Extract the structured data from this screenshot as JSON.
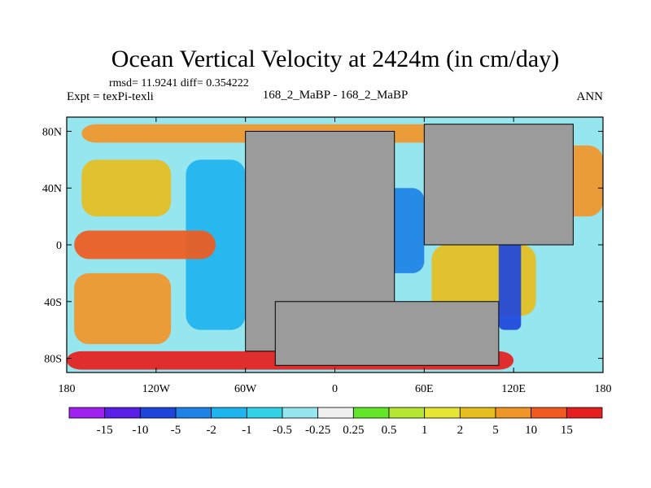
{
  "chart_data": {
    "type": "heatmap",
    "title": "Ocean Vertical Velocity at 2424m (in cm/day)",
    "stats": "rmsd= 11.9241 diff= 0.354222",
    "left_label": "Expt = texPi-texli",
    "center_label": "168_2_MaBP - 168_2_MaBP",
    "right_label": "ANN",
    "x_ticks": [
      "180",
      "120W",
      "60W",
      "0",
      "60E",
      "120E",
      "180"
    ],
    "x_tick_values": [
      -180,
      -120,
      -60,
      0,
      60,
      120,
      180
    ],
    "y_ticks": [
      "80N",
      "40N",
      "0",
      "40S",
      "80S"
    ],
    "y_tick_values": [
      80,
      40,
      0,
      -40,
      -80
    ],
    "xlim": [
      -180,
      180
    ],
    "ylim": [
      -90,
      90
    ],
    "colorbar": {
      "labels": [
        "-15",
        "-10",
        "-5",
        "-2",
        "-1",
        "-0.5",
        "-0.25",
        "0.25",
        "0.5",
        "1",
        "2",
        "5",
        "10",
        "15"
      ],
      "colors": [
        "#a020f0",
        "#5a1ee6",
        "#1e46dc",
        "#1e82e6",
        "#1eb4ef",
        "#32d2e6",
        "#96e6f0",
        "#f0f0f0",
        "#64e628",
        "#b4e632",
        "#e6e632",
        "#e6be1e",
        "#f09628",
        "#f05a1e",
        "#e61e1e"
      ]
    },
    "land_color": "#9b9b9b",
    "ocean_regions": [
      {
        "name": "north-polar-ocean",
        "level": "5",
        "lon": [
          -170,
          150
        ],
        "lat": [
          72,
          85
        ]
      },
      {
        "name": "east-pacific-upwelling",
        "level": "-1",
        "lon": [
          -100,
          -60
        ],
        "lat": [
          -60,
          60
        ]
      },
      {
        "name": "north-pacific-gyre",
        "level": "2",
        "lon": [
          -170,
          -110
        ],
        "lat": [
          20,
          60
        ]
      },
      {
        "name": "south-pacific-gyre",
        "level": "5",
        "lon": [
          -175,
          -110
        ],
        "lat": [
          -70,
          -20
        ]
      },
      {
        "name": "equatorial-pacific",
        "level": "10",
        "lon": [
          -175,
          -80
        ],
        "lat": [
          -10,
          10
        ]
      },
      {
        "name": "southern-ocean-band",
        "level": "15",
        "lon": [
          -180,
          120
        ],
        "lat": [
          -88,
          -75
        ]
      },
      {
        "name": "indian-ocean-basin",
        "level": "2",
        "lon": [
          65,
          135
        ],
        "lat": [
          -50,
          0
        ]
      },
      {
        "name": "west-pacific-boundary",
        "level": "-5",
        "lon": [
          110,
          125
        ],
        "lat": [
          -60,
          30
        ]
      },
      {
        "name": "northwest-pacific",
        "level": "5",
        "lon": [
          125,
          180
        ],
        "lat": [
          20,
          70
        ]
      },
      {
        "name": "seaway-basin",
        "level": "-2",
        "lon": [
          28,
          60
        ],
        "lat": [
          -20,
          40
        ]
      }
    ],
    "land_masses": [
      {
        "name": "western-continent",
        "lon": [
          -60,
          40
        ],
        "lat": [
          -75,
          80
        ]
      },
      {
        "name": "eastern-continent",
        "lon": [
          60,
          160
        ],
        "lat": [
          0,
          85
        ]
      },
      {
        "name": "southern-continent",
        "lon": [
          -40,
          110
        ],
        "lat": [
          -85,
          -40
        ]
      }
    ]
  }
}
